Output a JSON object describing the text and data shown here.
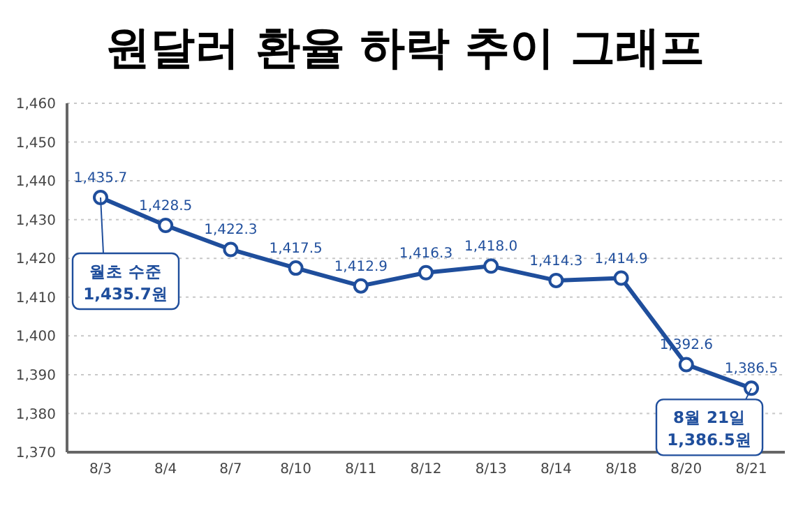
{
  "chart_data": {
    "type": "line",
    "title": "원달러 환율 하락 추이 그래프",
    "categories": [
      "8/3",
      "8/4",
      "8/7",
      "8/10",
      "8/11",
      "8/12",
      "8/13",
      "8/14",
      "8/18",
      "8/20",
      "8/21"
    ],
    "series": [
      {
        "color": "#1f4e9c",
        "values": [
          1435.7,
          1428.5,
          1422.3,
          1417.5,
          1412.9,
          1416.3,
          1418.0,
          1414.3,
          1414.9,
          1392.6,
          1386.5
        ],
        "value_labels": [
          "1,435.7",
          "1,428.5",
          "1,422.3",
          "1,417.5",
          "1,412.9",
          "1,416.3",
          "1,418.0",
          "1,414.3",
          "1,414.9",
          "1,392.6",
          "1,386.5"
        ]
      }
    ],
    "ylim": [
      1370,
      1460
    ],
    "yticks": [
      {
        "value": 1370,
        "label": "1,370"
      },
      {
        "value": 1380,
        "label": "1,380"
      },
      {
        "value": 1390,
        "label": "1,390"
      },
      {
        "value": 1400,
        "label": "1,400"
      },
      {
        "value": 1410,
        "label": "1,410"
      },
      {
        "value": 1420,
        "label": "1,420"
      },
      {
        "value": 1430,
        "label": "1,430"
      },
      {
        "value": 1440,
        "label": "1,440"
      },
      {
        "value": 1450,
        "label": "1,450"
      },
      {
        "value": 1460,
        "label": "1,460"
      }
    ],
    "grid": "y",
    "marker": "circle",
    "line_style": "solid",
    "legend": false,
    "annotations": [
      {
        "text": "월초 수준\n1,435.7원",
        "x": "8/3",
        "y": 1435.7
      },
      {
        "text": "8월 21일\n1,386.5원",
        "x": "8/21",
        "y": 1386.5
      }
    ]
  }
}
